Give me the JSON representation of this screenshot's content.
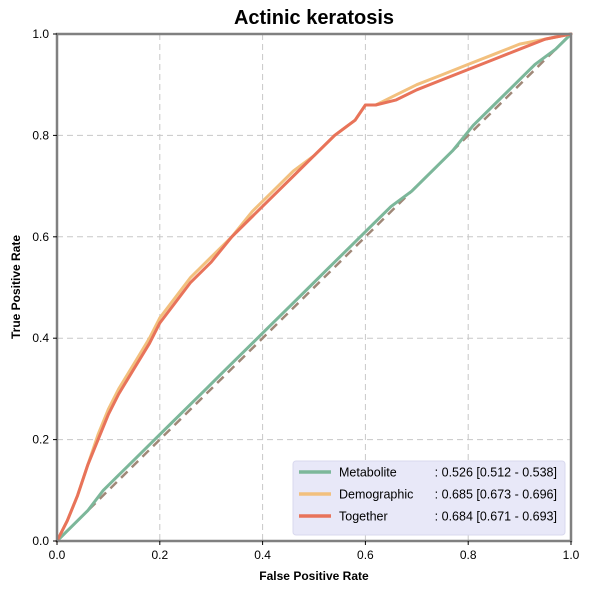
{
  "chart_data": {
    "type": "line",
    "title": "Actinic keratosis",
    "xlabel": "False Positive Rate",
    "ylabel": "True Positive Rate",
    "xlim": [
      0,
      1
    ],
    "ylim": [
      0,
      1
    ],
    "xticks": [
      "0.0",
      "0.2",
      "0.4",
      "0.6",
      "0.8",
      "1.0"
    ],
    "yticks": [
      "0.0",
      "0.2",
      "0.4",
      "0.6",
      "0.8",
      "1.0"
    ],
    "grid": true,
    "legend_position": "lower-right",
    "diagonal_reference": {
      "x": [
        0,
        1
      ],
      "y": [
        0,
        1
      ],
      "color": "#a08878",
      "style": "dashed"
    },
    "series": [
      {
        "name": "Metabolite",
        "stat": ": 0.526 [0.512 - 0.538]",
        "color": "#7cb79a",
        "x": [
          0,
          0.03,
          0.06,
          0.09,
          0.12,
          0.15,
          0.18,
          0.21,
          0.25,
          0.29,
          0.33,
          0.37,
          0.41,
          0.45,
          0.49,
          0.53,
          0.57,
          0.61,
          0.65,
          0.69,
          0.73,
          0.77,
          0.81,
          0.85,
          0.89,
          0.93,
          0.97,
          1.0
        ],
        "y": [
          0,
          0.03,
          0.06,
          0.1,
          0.13,
          0.16,
          0.19,
          0.22,
          0.26,
          0.3,
          0.34,
          0.38,
          0.42,
          0.46,
          0.5,
          0.54,
          0.58,
          0.62,
          0.66,
          0.69,
          0.73,
          0.77,
          0.82,
          0.86,
          0.9,
          0.94,
          0.97,
          1.0
        ]
      },
      {
        "name": "Demographic",
        "stat": ": 0.685 [0.673 - 0.696]",
        "color": "#f2c07e",
        "x": [
          0,
          0.02,
          0.04,
          0.06,
          0.08,
          0.1,
          0.12,
          0.15,
          0.18,
          0.2,
          0.23,
          0.26,
          0.3,
          0.34,
          0.38,
          0.42,
          0.46,
          0.5,
          0.54,
          0.58,
          0.6,
          0.62,
          0.66,
          0.7,
          0.75,
          0.8,
          0.85,
          0.9,
          0.95,
          1.0
        ],
        "y": [
          0,
          0.04,
          0.09,
          0.15,
          0.21,
          0.26,
          0.3,
          0.35,
          0.4,
          0.44,
          0.48,
          0.52,
          0.56,
          0.6,
          0.65,
          0.69,
          0.73,
          0.76,
          0.8,
          0.83,
          0.86,
          0.86,
          0.88,
          0.9,
          0.92,
          0.94,
          0.96,
          0.98,
          0.99,
          1.0
        ]
      },
      {
        "name": "Together",
        "stat": ": 0.684 [0.671 - 0.693]",
        "color": "#e8735a",
        "x": [
          0,
          0.02,
          0.04,
          0.06,
          0.08,
          0.1,
          0.12,
          0.15,
          0.18,
          0.2,
          0.23,
          0.26,
          0.3,
          0.34,
          0.38,
          0.42,
          0.46,
          0.5,
          0.54,
          0.58,
          0.6,
          0.62,
          0.66,
          0.7,
          0.75,
          0.8,
          0.85,
          0.9,
          0.95,
          1.0
        ],
        "y": [
          0,
          0.04,
          0.09,
          0.15,
          0.2,
          0.25,
          0.29,
          0.34,
          0.39,
          0.43,
          0.47,
          0.51,
          0.55,
          0.6,
          0.64,
          0.68,
          0.72,
          0.76,
          0.8,
          0.83,
          0.86,
          0.86,
          0.87,
          0.89,
          0.91,
          0.93,
          0.95,
          0.97,
          0.99,
          1.0
        ]
      }
    ]
  }
}
